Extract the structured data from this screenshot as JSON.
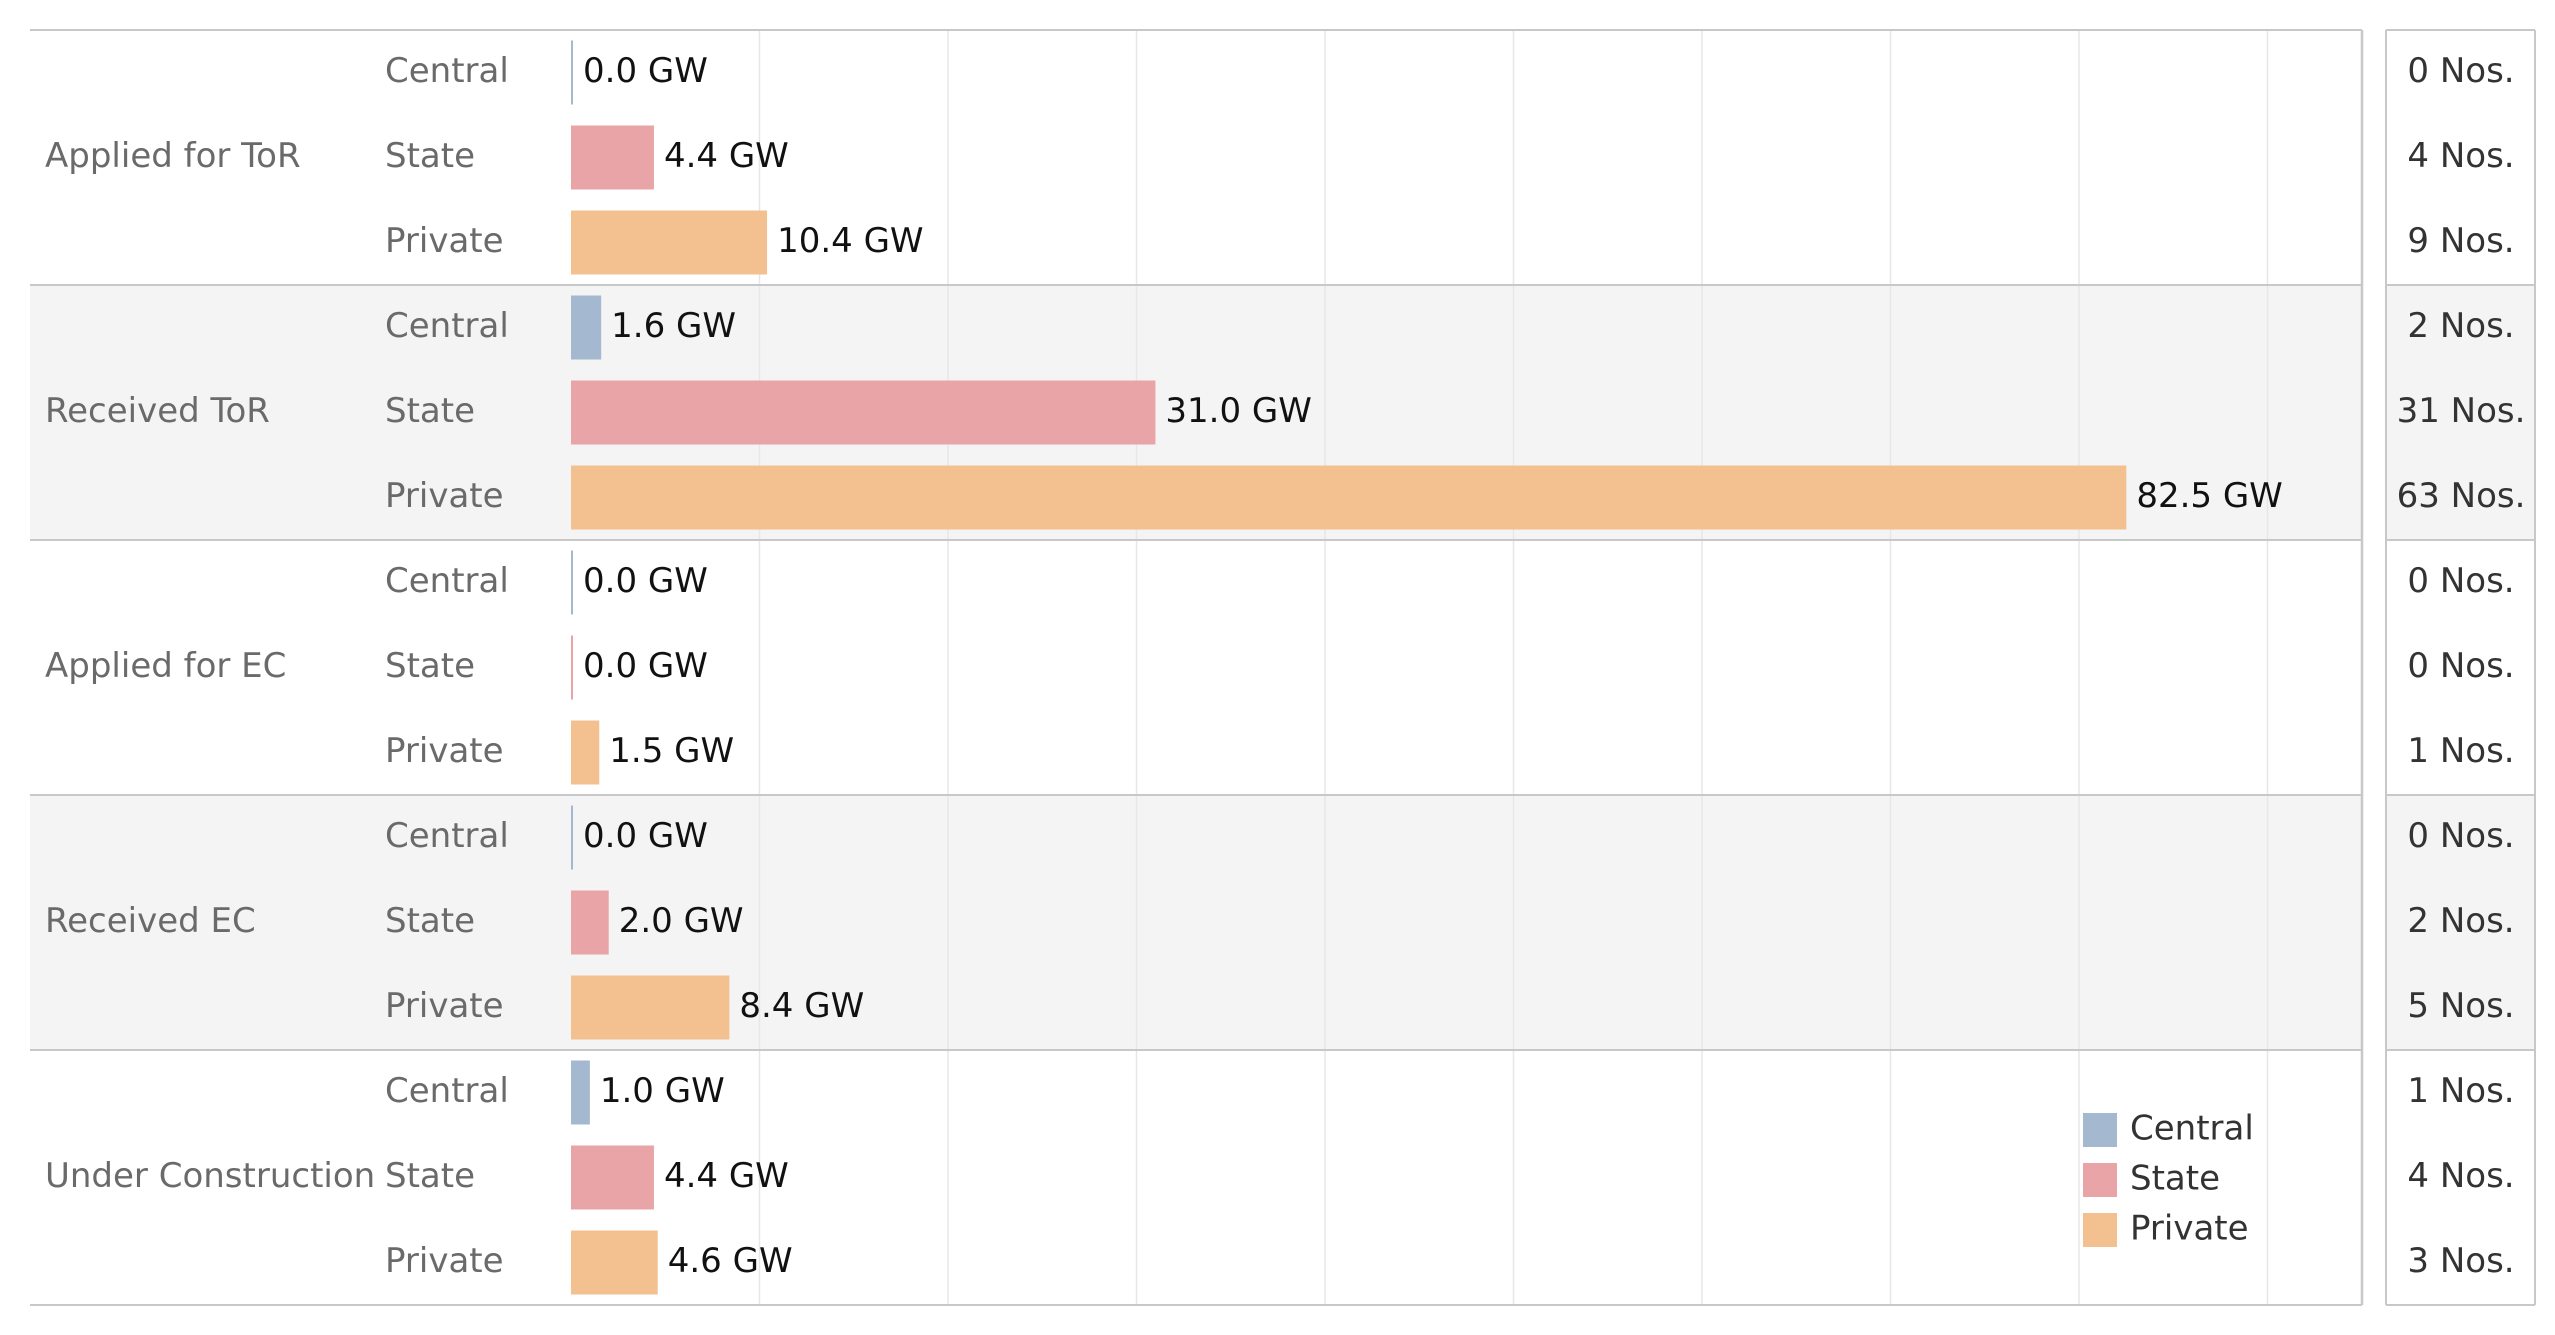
{
  "colors": {
    "Central": "#a4b8d0",
    "State": "#e9a4a8",
    "Private": "#f3c08f",
    "band_alt": "#f4f4f4",
    "grid": "#e7e7e7",
    "divider": "#c8c8c8"
  },
  "chart_data": {
    "type": "bar",
    "orientation": "horizontal",
    "value_unit": "GW",
    "xlim": [
      0,
      95
    ],
    "grid": true,
    "legend_position": "bottom-right",
    "legend": [
      "Central",
      "State",
      "Private"
    ],
    "groups": [
      {
        "stage": "Applied for ToR",
        "rows": [
          {
            "sector": "Central",
            "value": 0.0,
            "label": "0.0 GW",
            "count": "0 Nos."
          },
          {
            "sector": "State",
            "value": 4.4,
            "label": "4.4 GW",
            "count": "4 Nos."
          },
          {
            "sector": "Private",
            "value": 10.4,
            "label": "10.4 GW",
            "count": "9 Nos."
          }
        ]
      },
      {
        "stage": "Received ToR",
        "rows": [
          {
            "sector": "Central",
            "value": 1.6,
            "label": "1.6 GW",
            "count": "2 Nos."
          },
          {
            "sector": "State",
            "value": 31.0,
            "label": "31.0 GW",
            "count": "31 Nos."
          },
          {
            "sector": "Private",
            "value": 82.5,
            "label": "82.5 GW",
            "count": "63 Nos."
          }
        ]
      },
      {
        "stage": "Applied for EC",
        "rows": [
          {
            "sector": "Central",
            "value": 0.0,
            "label": "0.0 GW",
            "count": "0 Nos."
          },
          {
            "sector": "State",
            "value": 0.0,
            "label": "0.0 GW",
            "count": "0 Nos."
          },
          {
            "sector": "Private",
            "value": 1.5,
            "label": "1.5 GW",
            "count": "1 Nos."
          }
        ]
      },
      {
        "stage": "Received EC",
        "rows": [
          {
            "sector": "Central",
            "value": 0.0,
            "label": "0.0 GW",
            "count": "0 Nos."
          },
          {
            "sector": "State",
            "value": 2.0,
            "label": "2.0 GW",
            "count": "2 Nos."
          },
          {
            "sector": "Private",
            "value": 8.4,
            "label": "8.4 GW",
            "count": "5 Nos."
          }
        ]
      },
      {
        "stage": "Under Construction",
        "rows": [
          {
            "sector": "Central",
            "value": 1.0,
            "label": "1.0 GW",
            "count": "1 Nos."
          },
          {
            "sector": "State",
            "value": 4.4,
            "label": "4.4 GW",
            "count": "4 Nos."
          },
          {
            "sector": "Private",
            "value": 4.6,
            "label": "4.6 GW",
            "count": "3 Nos."
          }
        ]
      }
    ]
  }
}
